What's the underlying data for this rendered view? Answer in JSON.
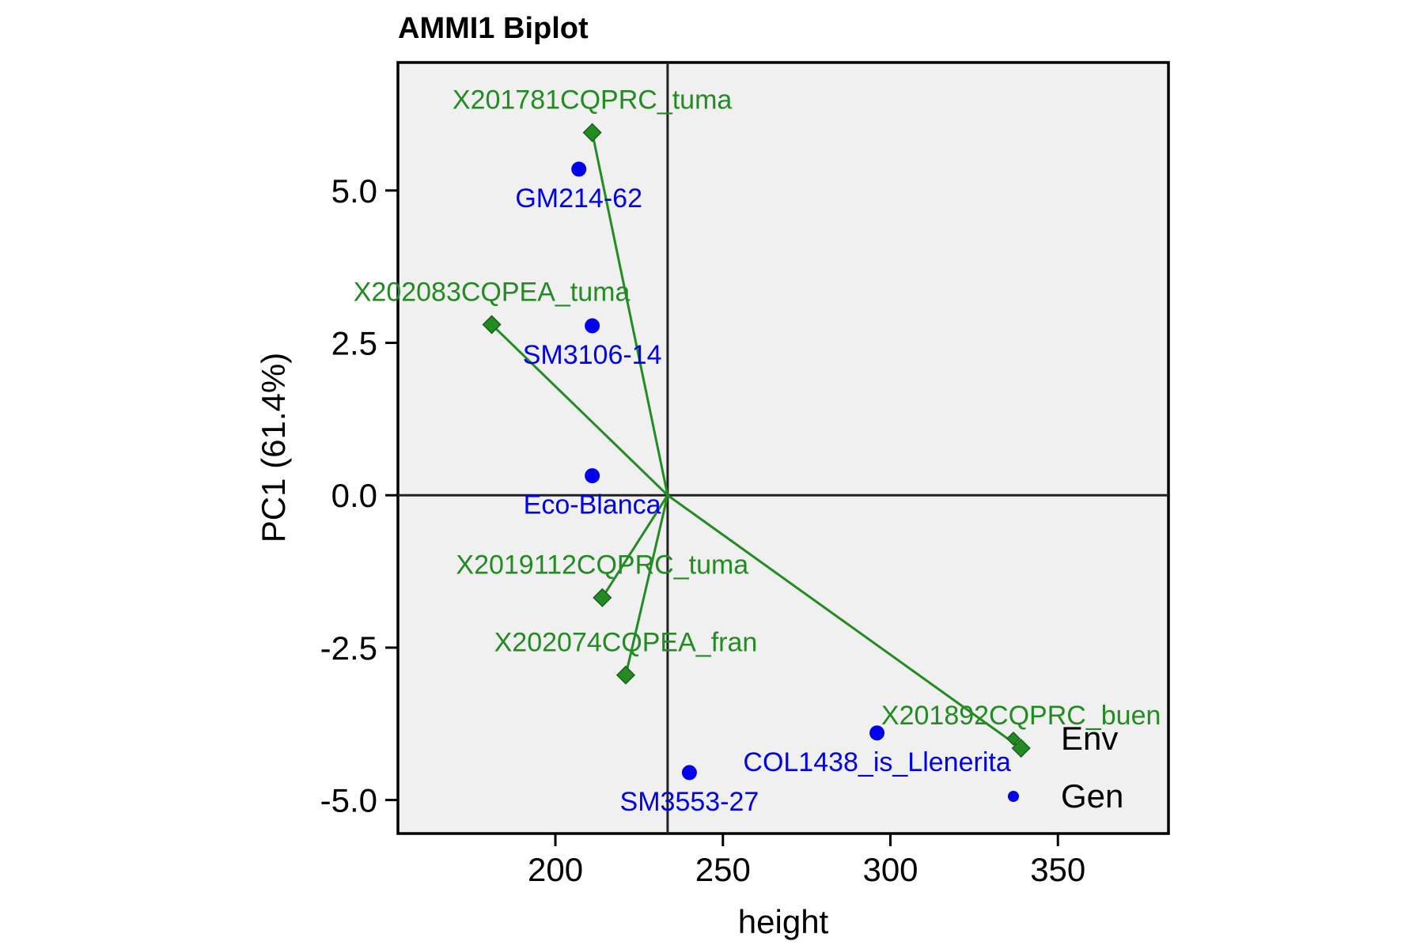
{
  "chart_data": {
    "type": "scatter",
    "title": "AMMI1 Biplot",
    "xlabel": "height",
    "ylabel": "PC1 (61.4%)",
    "xlim": [
      153,
      383
    ],
    "ylim": [
      -5.55,
      7.1
    ],
    "xticks": [
      200,
      250,
      300,
      350
    ],
    "yticks": [
      5.0,
      2.5,
      0.0,
      -2.5,
      -5.0
    ],
    "xtick_labels": [
      "200",
      "250",
      "300",
      "350"
    ],
    "ytick_labels": [
      "5.0",
      "2.5",
      "0.0",
      "-2.5",
      "-5.0"
    ],
    "origin": {
      "x": 233.5,
      "y": 0.0
    },
    "grid": false,
    "legend_position": "bottom-right",
    "colors": {
      "env": "#228b22",
      "gen": "#0000ee",
      "panel": "#f0f0f0",
      "axes": "#000000"
    },
    "series": [
      {
        "name": "Env",
        "marker": "diamond",
        "points": [
          {
            "label": "X201781CQPRC_tuma",
            "x": 211,
            "y": 5.95
          },
          {
            "label": "X202083CQPEA_tuma",
            "x": 181,
            "y": 2.8
          },
          {
            "label": "X2019112CQPRC_tuma",
            "x": 214,
            "y": -1.68
          },
          {
            "label": "X202074CQPEA_fran",
            "x": 221,
            "y": -2.95
          },
          {
            "label": "X201892CQPRC_buen",
            "x": 339,
            "y": -4.15
          }
        ]
      },
      {
        "name": "Gen",
        "marker": "circle",
        "points": [
          {
            "label": "GM214-62",
            "x": 207,
            "y": 5.35
          },
          {
            "label": "SM3106-14",
            "x": 211,
            "y": 2.78
          },
          {
            "label": "Eco-Blanca",
            "x": 211,
            "y": 0.32
          },
          {
            "label": "COL1438_is_Llenerita",
            "x": 296,
            "y": -3.9
          },
          {
            "label": "SM3553-27",
            "x": 240,
            "y": -4.55
          }
        ]
      }
    ],
    "legend": [
      {
        "name": "Env",
        "marker": "diamond"
      },
      {
        "name": "Gen",
        "marker": "circle"
      }
    ]
  }
}
